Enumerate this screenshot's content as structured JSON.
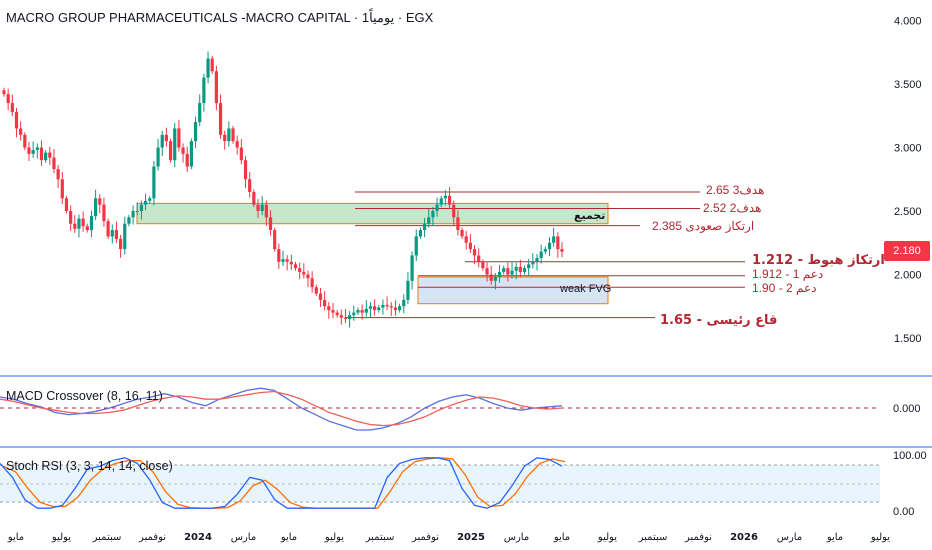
{
  "header": {
    "symbol_title": "MACRO GROUP PHARMACEUTICALS -MACRO CAPITAL · 1يومياً · EGX"
  },
  "last_price": "2.180",
  "colors": {
    "up": "#089981",
    "down": "#f23645",
    "level_line": "#b22833",
    "zone_green": "#c8e6c9",
    "zone_blue": "#d6e4f5",
    "zone_border": "#f57c00",
    "macd_line": "#5b6fe0",
    "signal_line": "#f0605a",
    "stoch_k": "#2962ff",
    "stoch_d": "#ff6d00",
    "separator": "#2962ff"
  },
  "price_axis": {
    "ticks": [
      "4.000",
      "3.500",
      "3.000",
      "2.500",
      "2.000",
      "1.500"
    ]
  },
  "time_axis": {
    "ticks": [
      "مايو",
      "يوليو",
      "سبتمبر",
      "نوفمبر",
      "2024",
      "مارس",
      "مايو",
      "يوليو",
      "سبتمبر",
      "نوفمبر",
      "2025",
      "مارس",
      "مايو",
      "يوليو",
      "سبتمبر",
      "نوفمبر",
      "2026",
      "مارس",
      "مايو",
      "يوليو"
    ]
  },
  "annotations": {
    "target3": "هدف3  2.65",
    "target2": "هدف2  2.52",
    "accumulation": "تجميع",
    "support_up": "ارتكاز صعودى  2.385",
    "pivot_down": "ارتكاز هبوط  - 1.212",
    "support1": "دعم 1  - 1.912",
    "support2": "دعم 2  - 1.90",
    "weak_fvg": "weak FVG",
    "major_bottom": "قاع رئيسى  - 1.65"
  },
  "macd": {
    "title": "MACD Crossover (8, 16, 11)",
    "axis_label": "0.000"
  },
  "stoch": {
    "title": "Stoch RSI (3, 3, 14, 14, close)",
    "upper_label": "100.00",
    "lower_label": "0.00"
  },
  "chart_data": {
    "type": "candlestick",
    "y_range": [
      1.3,
      4.15
    ],
    "closes": [
      3.42,
      3.35,
      3.28,
      3.15,
      3.1,
      3.0,
      2.95,
      2.98,
      3.0,
      2.9,
      2.96,
      2.92,
      2.83,
      2.75,
      2.6,
      2.5,
      2.4,
      2.36,
      2.44,
      2.38,
      2.35,
      2.46,
      2.6,
      2.55,
      2.42,
      2.3,
      2.35,
      2.28,
      2.2,
      2.4,
      2.45,
      2.5,
      2.5,
      2.55,
      2.58,
      2.6,
      2.85,
      3.0,
      3.1,
      3.05,
      2.9,
      3.15,
      3.0,
      2.95,
      2.85,
      3.05,
      3.2,
      3.35,
      3.55,
      3.7,
      3.6,
      3.35,
      3.1,
      3.05,
      3.15,
      3.05,
      3.0,
      2.9,
      2.75,
      2.65,
      2.55,
      2.5,
      2.55,
      2.45,
      2.35,
      2.2,
      2.1,
      2.12,
      2.1,
      2.08,
      2.05,
      2.02,
      2.0,
      1.97,
      1.9,
      1.85,
      1.8,
      1.75,
      1.72,
      1.7,
      1.68,
      1.66,
      1.65,
      1.68,
      1.7,
      1.72,
      1.7,
      1.73,
      1.75,
      1.72,
      1.74,
      1.76,
      1.75,
      1.74,
      1.72,
      1.75,
      1.8,
      1.95,
      2.15,
      2.3,
      2.35,
      2.4,
      2.45,
      2.5,
      2.55,
      2.6,
      2.62,
      2.55,
      2.45,
      2.35,
      2.3,
      2.25,
      2.2,
      2.15,
      2.1,
      2.05,
      2.0,
      1.95,
      1.98,
      2.02,
      2.05,
      2.0,
      2.03,
      2.06,
      2.02,
      2.05,
      2.08,
      2.1,
      2.13,
      2.18,
      2.2,
      2.25,
      2.3,
      2.2,
      2.18
    ],
    "macd_series": [
      {
        "name": "MACD",
        "values": [
          0.1,
          0.08,
          0.04,
          0.01,
          -0.04,
          -0.06,
          -0.05,
          -0.03,
          0.0,
          0.04,
          0.08,
          0.1,
          0.13,
          0.1,
          0.05,
          0.02,
          0.08,
          0.12,
          0.16,
          0.18,
          0.16,
          0.08,
          0.0,
          -0.06,
          -0.12,
          -0.16,
          -0.2,
          -0.2,
          -0.18,
          -0.14,
          -0.08,
          0.0,
          0.06,
          0.1,
          0.12,
          0.09,
          0.04,
          0.0,
          -0.02,
          0.0,
          0.01,
          0.02
        ]
      },
      {
        "name": "Signal",
        "values": [
          0.08,
          0.06,
          0.03,
          0.0,
          -0.02,
          -0.04,
          -0.05,
          -0.05,
          -0.04,
          -0.02,
          0.02,
          0.06,
          0.09,
          0.11,
          0.1,
          0.08,
          0.08,
          0.1,
          0.12,
          0.14,
          0.15,
          0.12,
          0.08,
          0.02,
          -0.04,
          -0.08,
          -0.12,
          -0.15,
          -0.16,
          -0.15,
          -0.12,
          -0.08,
          -0.02,
          0.03,
          0.07,
          0.1,
          0.09,
          0.06,
          0.02,
          0.0,
          -0.01,
          0.0
        ]
      }
    ],
    "stoch_series": [
      {
        "name": "K",
        "values": [
          85,
          60,
          20,
          5,
          5,
          10,
          40,
          75,
          80,
          90,
          95,
          85,
          55,
          15,
          5,
          5,
          5,
          5,
          8,
          30,
          60,
          55,
          20,
          5,
          5,
          5,
          5,
          5,
          5,
          5,
          5,
          60,
          85,
          92,
          95,
          95,
          90,
          40,
          10,
          5,
          15,
          45,
          80,
          95,
          92,
          80
        ]
      },
      {
        "name": "D",
        "values": [
          80,
          70,
          40,
          15,
          8,
          8,
          25,
          55,
          75,
          85,
          90,
          90,
          70,
          35,
          12,
          6,
          5,
          5,
          6,
          18,
          45,
          55,
          38,
          15,
          7,
          5,
          5,
          5,
          5,
          5,
          5,
          35,
          70,
          88,
          93,
          95,
          93,
          65,
          25,
          8,
          10,
          30,
          62,
          85,
          93,
          88
        ]
      }
    ]
  }
}
